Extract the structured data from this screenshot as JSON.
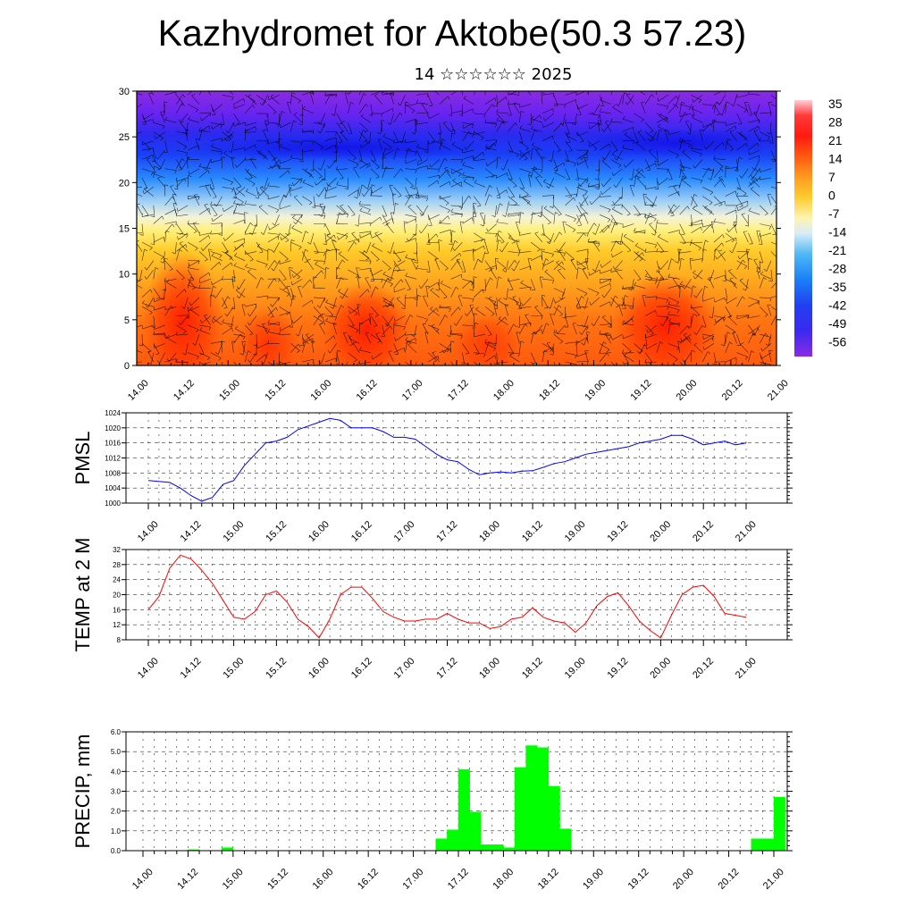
{
  "title": "Kazhydromet for Aktobe(50.3 57.23)",
  "subtitle": "14 ☆☆☆☆☆☆ 2025",
  "x_tick_labels": [
    "14.00",
    "14.12",
    "15.00",
    "15.12",
    "16.00",
    "16.12",
    "17.00",
    "17.12",
    "18.00",
    "18.12",
    "19.00",
    "19.12",
    "20.00",
    "20.12",
    "21.00"
  ],
  "chart_data": [
    {
      "type": "heatmap",
      "title": "Kazhydromet for Aktobe(50.3 57.23)",
      "subtitle": "14 ☆☆☆☆☆☆ 2025",
      "ylim": [
        0,
        30
      ],
      "y_ticks": [
        0,
        5,
        10,
        15,
        20,
        25,
        30
      ],
      "colorbar_labels": [
        "35",
        "28",
        "21",
        "14",
        "7",
        "0",
        "-7",
        "-14",
        "-21",
        "-28",
        "-35",
        "-42",
        "-49",
        "-56"
      ],
      "overlay": "wind barbs",
      "grid": false
    },
    {
      "type": "line",
      "ylabel": "PMSL",
      "ylim": [
        1000,
        1024
      ],
      "y_ticks": [
        1000,
        1004,
        1008,
        1012,
        1016,
        1020,
        1024
      ],
      "color": "#0000ff",
      "grid": true,
      "x": [
        0,
        2,
        3,
        4,
        5,
        6,
        7,
        8,
        9,
        10,
        11,
        12,
        13,
        14,
        15,
        16,
        17,
        18,
        19,
        20,
        21,
        22,
        23,
        24,
        25,
        26,
        27,
        28,
        29,
        30,
        31,
        32,
        33,
        34,
        35,
        36,
        37,
        38,
        39,
        40,
        41,
        42,
        43,
        44,
        45,
        46,
        47,
        48,
        49,
        50,
        51,
        52,
        53,
        54,
        55,
        56
      ],
      "values": [
        1006,
        1005.5,
        1004,
        1002,
        1000.5,
        1001.5,
        1005,
        1006,
        1010,
        1013,
        1016,
        1016.5,
        1017.5,
        1019.5,
        1020.5,
        1021.5,
        1022.5,
        1022,
        1020,
        1020,
        1020,
        1019,
        1017.5,
        1017.5,
        1017,
        1015,
        1013,
        1011.5,
        1011,
        1009,
        1007.5,
        1008,
        1008.3,
        1008,
        1008.5,
        1008.6,
        1009.5,
        1010.5,
        1011,
        1012,
        1013,
        1013.5,
        1014,
        1014.5,
        1015,
        1016,
        1016.5,
        1017,
        1018,
        1018,
        1017,
        1015.5,
        1016,
        1016.5,
        1015.5,
        1016
      ]
    },
    {
      "type": "line",
      "ylabel": "TEMP at 2 M",
      "ylim": [
        8,
        32
      ],
      "y_ticks": [
        8,
        12,
        16,
        20,
        24,
        28,
        32
      ],
      "color": "#ff0000",
      "grid": true,
      "x": [
        0,
        1,
        2,
        3,
        4,
        5,
        6,
        7,
        8,
        9,
        10,
        11,
        12,
        13,
        14,
        15,
        16,
        17,
        18,
        19,
        20,
        21,
        22,
        23,
        24,
        25,
        26,
        27,
        28,
        29,
        30,
        31,
        32,
        33,
        34,
        35,
        36,
        37,
        38,
        39,
        40,
        41,
        42,
        43,
        44,
        45,
        46,
        47,
        48,
        49,
        50,
        51,
        52,
        53,
        54,
        55,
        56
      ],
      "values": [
        16,
        19.5,
        27,
        30.5,
        29.5,
        26.5,
        23,
        18.5,
        14,
        13.5,
        15.5,
        20,
        21,
        18,
        13.5,
        11.5,
        8.5,
        13.5,
        20,
        22,
        22,
        19,
        15.5,
        14,
        13,
        13,
        13.5,
        13.5,
        15,
        13.5,
        12.5,
        12.5,
        11,
        11.5,
        13.5,
        14,
        16.5,
        14,
        13,
        12.5,
        10,
        12.5,
        17,
        19.5,
        20.5,
        17,
        13,
        10.5,
        8.5,
        14.5,
        20,
        22,
        22.5,
        19.5,
        15,
        14.5,
        14
      ]
    },
    {
      "type": "bar",
      "ylabel": "PRECIP, mm",
      "ylim": [
        0,
        6
      ],
      "y_ticks": [
        "0.0",
        "1.0",
        "2.0",
        "3.0",
        "4.0",
        "5.0",
        "6.0"
      ],
      "color": "#00ff00",
      "grid": true,
      "x": [
        0,
        1,
        2,
        3,
        4,
        5,
        6,
        7,
        8,
        9,
        10,
        11,
        12,
        13,
        14,
        15,
        16,
        17,
        18,
        19,
        20,
        21,
        22,
        23,
        24,
        25,
        26,
        27,
        28,
        29,
        30,
        31,
        32,
        33,
        34,
        35,
        36,
        37,
        38,
        39,
        40,
        41,
        42,
        43,
        44,
        45,
        46,
        47,
        48,
        49,
        50,
        51,
        52,
        53,
        54,
        55,
        56
      ],
      "values": [
        0,
        0,
        0,
        0,
        0.05,
        0,
        0,
        0.15,
        0,
        0,
        0,
        0,
        0,
        0,
        0,
        0,
        0,
        0,
        0,
        0,
        0,
        0,
        0,
        0,
        0,
        0,
        0.6,
        1.05,
        4.1,
        1.95,
        0.3,
        0.3,
        0.15,
        4.2,
        5.3,
        5.2,
        3.25,
        1.1,
        0,
        0,
        0,
        0,
        0,
        0,
        0,
        0,
        0,
        0,
        0,
        0,
        0,
        0,
        0,
        0,
        0.6,
        0.6,
        2.7
      ]
    }
  ]
}
